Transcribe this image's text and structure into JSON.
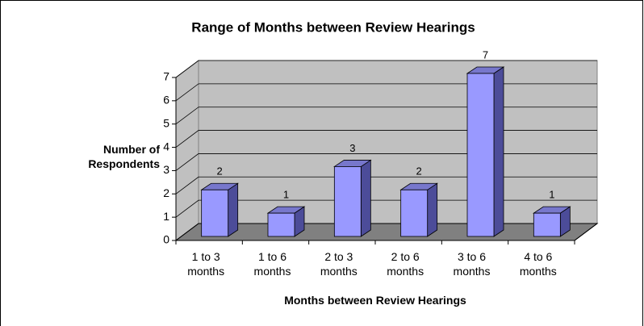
{
  "chart_data": {
    "type": "bar3d",
    "title": "Range of Months between Review Hearings",
    "categories": [
      "1 to 3 months",
      "1 to 6 months",
      "2 to 3 months",
      "2 to 6 months",
      "3 to 6 months",
      "4 to 6 months"
    ],
    "values": [
      2,
      1,
      3,
      2,
      7,
      1
    ],
    "color": "#9999ff",
    "ylim": [
      0,
      7
    ],
    "yticks": [
      0,
      1,
      2,
      3,
      4,
      5,
      6,
      7
    ],
    "grid": true,
    "ylabel": "Number of Respondents",
    "xlabel": "Months between Review Hearings"
  }
}
